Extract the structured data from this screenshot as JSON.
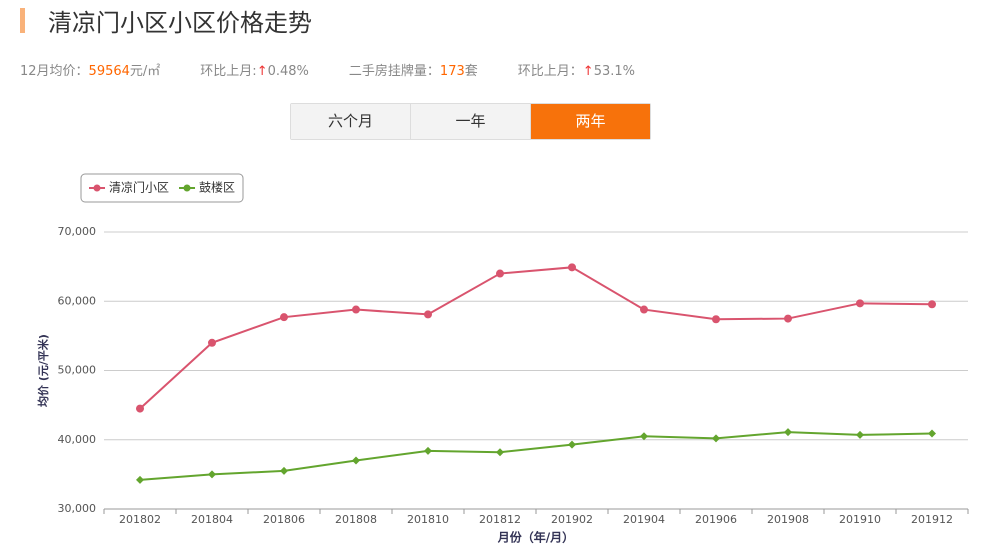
{
  "header": {
    "title": "清凉门小区小区价格走势"
  },
  "stats": [
    {
      "label": "12月均价：",
      "value": "59564",
      "unit": "元/㎡"
    },
    {
      "label": "环比上月:",
      "arrow": "↑",
      "value": "0.48%"
    },
    {
      "label": "二手房挂牌量：",
      "value": "173",
      "unit": "套"
    },
    {
      "label": "环比上月：",
      "arrow": "↑",
      "value": "53.1%"
    }
  ],
  "tabs": [
    "六个月",
    "一年",
    "两年"
  ],
  "active_tab": 2,
  "chart_data": {
    "type": "line",
    "categories": [
      "201802",
      "201804",
      "201806",
      "201808",
      "201810",
      "201812",
      "201902",
      "201904",
      "201906",
      "201908",
      "201910",
      "201912"
    ],
    "series": [
      {
        "name": "清凉门小区",
        "color": "#d9546e",
        "values": [
          44500,
          54000,
          57700,
          58800,
          58100,
          64000,
          64900,
          58800,
          57400,
          57500,
          59700,
          59564
        ]
      },
      {
        "name": "鼓楼区",
        "color": "#63a52e",
        "values": [
          34200,
          35000,
          35500,
          37000,
          38400,
          38200,
          39300,
          40500,
          40200,
          41100,
          40700,
          40900
        ]
      }
    ],
    "ylim": [
      30000,
      70000
    ],
    "yticks": [
      {
        "value": 30000,
        "label": "30,000"
      },
      {
        "value": 40000,
        "label": "40,000"
      },
      {
        "value": 50000,
        "label": "50,000"
      },
      {
        "value": 60000,
        "label": "60,000"
      },
      {
        "value": 70000,
        "label": "70,000"
      }
    ],
    "ylabel": "均价 (元/平米)",
    "xlabel": "月份（年/月）",
    "grid": true,
    "legend": "top-left"
  }
}
